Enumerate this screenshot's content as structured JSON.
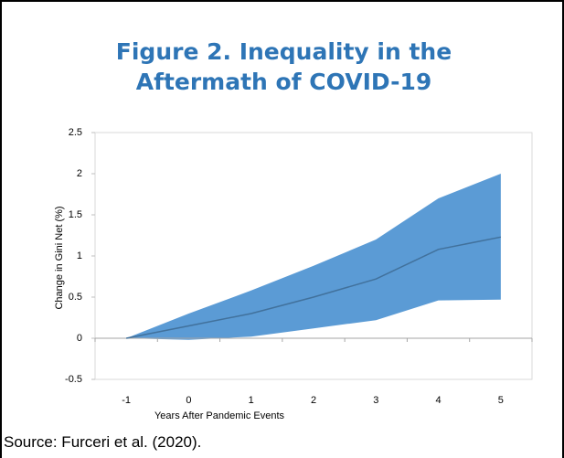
{
  "title": "Figure 2. Inequality in the Aftermath of COVID-19",
  "source": "Source: Furceri et al. (2020).",
  "chart_data": {
    "type": "line",
    "xlabel": "Years After Pandemic Events",
    "ylabel": "Change in Gini Net (%)",
    "categories": [
      "-1",
      "0",
      "1",
      "2",
      "3",
      "4",
      "5"
    ],
    "series": [
      {
        "color": "#41719c",
        "values": [
          0,
          0.15,
          0.3,
          0.5,
          0.72,
          1.08,
          1.23
        ]
      }
    ],
    "band": {
      "color": "#5b9bd5",
      "upper": [
        0,
        0.3,
        0.58,
        0.88,
        1.2,
        1.7,
        2.0
      ],
      "lower": [
        0,
        -0.02,
        0.02,
        0.12,
        0.22,
        0.46,
        0.47
      ]
    },
    "ylim": [
      -0.5,
      2.5
    ],
    "yticks": [
      -0.5,
      0,
      0.5,
      1,
      1.5,
      2,
      2.5
    ]
  }
}
